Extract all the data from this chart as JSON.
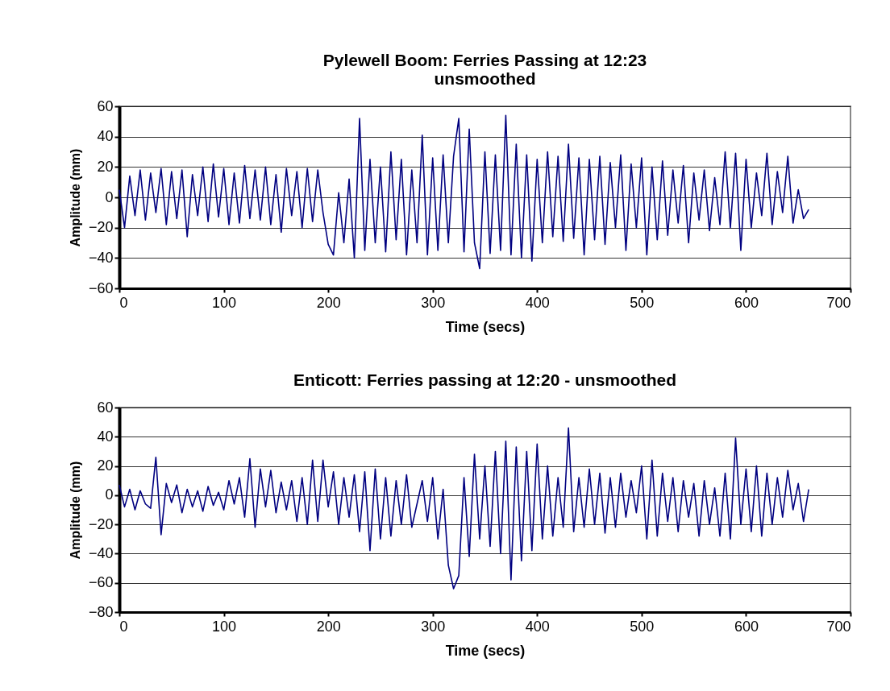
{
  "chart_data": [
    {
      "type": "line",
      "title": "Pylewell Boom: Ferries Passing at 12:23\nunsmoothed",
      "xlabel": "Time (secs)",
      "ylabel": "Amplitude (mm)",
      "xlim": [
        0,
        700
      ],
      "xticks": [
        0,
        100,
        200,
        300,
        400,
        500,
        600,
        700
      ],
      "ylim": [
        -60,
        60
      ],
      "yticks": [
        -60,
        -40,
        -20,
        0,
        20,
        40,
        60
      ],
      "grid": "y",
      "marker": "none",
      "line_style": "solid",
      "x": [
        0,
        5,
        10,
        15,
        20,
        25,
        30,
        35,
        40,
        45,
        50,
        55,
        60,
        65,
        70,
        75,
        80,
        85,
        90,
        95,
        100,
        105,
        110,
        115,
        120,
        125,
        130,
        135,
        140,
        145,
        150,
        155,
        160,
        165,
        170,
        175,
        180,
        185,
        190,
        195,
        200,
        205,
        210,
        215,
        220,
        225,
        230,
        235,
        240,
        245,
        250,
        255,
        260,
        265,
        270,
        275,
        280,
        285,
        290,
        295,
        300,
        305,
        310,
        315,
        320,
        325,
        330,
        335,
        340,
        345,
        350,
        355,
        360,
        365,
        370,
        375,
        380,
        385,
        390,
        395,
        400,
        405,
        410,
        415,
        420,
        425,
        430,
        435,
        440,
        445,
        450,
        455,
        460,
        465,
        470,
        475,
        480,
        485,
        490,
        495,
        500,
        505,
        510,
        515,
        520,
        525,
        530,
        535,
        540,
        545,
        550,
        555,
        560,
        565,
        570,
        575,
        580,
        585,
        590,
        595,
        600,
        605,
        610,
        615,
        620,
        625,
        630,
        635,
        640,
        645,
        650,
        655,
        660
      ],
      "series": [
        {
          "color": "#000080",
          "values": [
            5,
            -20,
            14,
            -12,
            18,
            -15,
            16,
            -10,
            19,
            -18,
            17,
            -14,
            18,
            -26,
            15,
            -12,
            20,
            -16,
            22,
            -13,
            19,
            -18,
            16,
            -17,
            21,
            -14,
            18,
            -15,
            20,
            -18,
            15,
            -23,
            19,
            -12,
            17,
            -20,
            19,
            -16,
            18,
            -10,
            -31,
            -38,
            3,
            -30,
            12,
            -40,
            52,
            -35,
            25,
            -30,
            20,
            -36,
            30,
            -28,
            25,
            -38,
            18,
            -30,
            41,
            -38,
            26,
            -35,
            28,
            -30,
            27,
            52,
            -36,
            45,
            -30,
            -47,
            30,
            -37,
            28,
            -35,
            54,
            -38,
            35,
            -40,
            28,
            -42,
            25,
            -30,
            30,
            -26,
            27,
            -29,
            35,
            -27,
            26,
            -38,
            25,
            -28,
            27,
            -31,
            23,
            -20,
            28,
            -35,
            22,
            -20,
            26,
            -38,
            20,
            -28,
            24,
            -25,
            18,
            -17,
            21,
            -30,
            16,
            -15,
            18,
            -22,
            13,
            -18,
            30,
            -20,
            29,
            -35,
            25,
            -20,
            16,
            -12,
            29,
            -18,
            17,
            -10,
            27,
            -17,
            5,
            -14,
            -8
          ]
        }
      ]
    },
    {
      "type": "line",
      "title": "Enticott: Ferries passing at 12:20 - unsmoothed",
      "xlabel": "Time (secs)",
      "ylabel": "Amplitude (mm)",
      "xlim": [
        0,
        700
      ],
      "xticks": [
        0,
        100,
        200,
        300,
        400,
        500,
        600,
        700
      ],
      "ylim": [
        -80,
        60
      ],
      "yticks": [
        -80,
        -60,
        -40,
        -20,
        0,
        20,
        40,
        60
      ],
      "grid": "y",
      "marker": "none",
      "line_style": "solid",
      "x": [
        0,
        5,
        10,
        15,
        20,
        25,
        30,
        35,
        40,
        45,
        50,
        55,
        60,
        65,
        70,
        75,
        80,
        85,
        90,
        95,
        100,
        105,
        110,
        115,
        120,
        125,
        130,
        135,
        140,
        145,
        150,
        155,
        160,
        165,
        170,
        175,
        180,
        185,
        190,
        195,
        200,
        205,
        210,
        215,
        220,
        225,
        230,
        235,
        240,
        245,
        250,
        255,
        260,
        265,
        270,
        275,
        280,
        285,
        290,
        295,
        300,
        305,
        310,
        315,
        320,
        325,
        330,
        335,
        340,
        345,
        350,
        355,
        360,
        365,
        370,
        375,
        380,
        385,
        390,
        395,
        400,
        405,
        410,
        415,
        420,
        425,
        430,
        435,
        440,
        445,
        450,
        455,
        460,
        465,
        470,
        475,
        480,
        485,
        490,
        495,
        500,
        505,
        510,
        515,
        520,
        525,
        530,
        535,
        540,
        545,
        550,
        555,
        560,
        565,
        570,
        575,
        580,
        585,
        590,
        595,
        600,
        605,
        610,
        615,
        620,
        625,
        630,
        635,
        640,
        645,
        650,
        655,
        660
      ],
      "series": [
        {
          "color": "#000080",
          "values": [
            7,
            -8,
            4,
            -10,
            3,
            -6,
            -9,
            26,
            -27,
            8,
            -5,
            7,
            -12,
            4,
            -8,
            3,
            -11,
            6,
            -7,
            2,
            -10,
            10,
            -6,
            12,
            -15,
            25,
            -22,
            18,
            -8,
            17,
            -12,
            9,
            -10,
            10,
            -18,
            12,
            -20,
            24,
            -18,
            24,
            -8,
            16,
            -20,
            12,
            -15,
            14,
            -25,
            16,
            -38,
            18,
            -30,
            12,
            -28,
            10,
            -20,
            14,
            -22,
            -6,
            10,
            -18,
            12,
            -30,
            4,
            -48,
            -64,
            -55,
            12,
            -42,
            28,
            -30,
            20,
            -35,
            30,
            -40,
            37,
            -58,
            33,
            -45,
            30,
            -38,
            35,
            -30,
            20,
            -28,
            12,
            -22,
            46,
            -25,
            12,
            -22,
            18,
            -20,
            15,
            -26,
            12,
            -22,
            15,
            -15,
            10,
            -12,
            20,
            -30,
            24,
            -28,
            15,
            -18,
            12,
            -25,
            10,
            -15,
            8,
            -28,
            10,
            -20,
            5,
            -28,
            15,
            -30,
            39,
            -20,
            18,
            -25,
            20,
            -28,
            15,
            -20,
            12,
            -15,
            17,
            -10,
            8,
            -18,
            4
          ]
        }
      ]
    }
  ]
}
